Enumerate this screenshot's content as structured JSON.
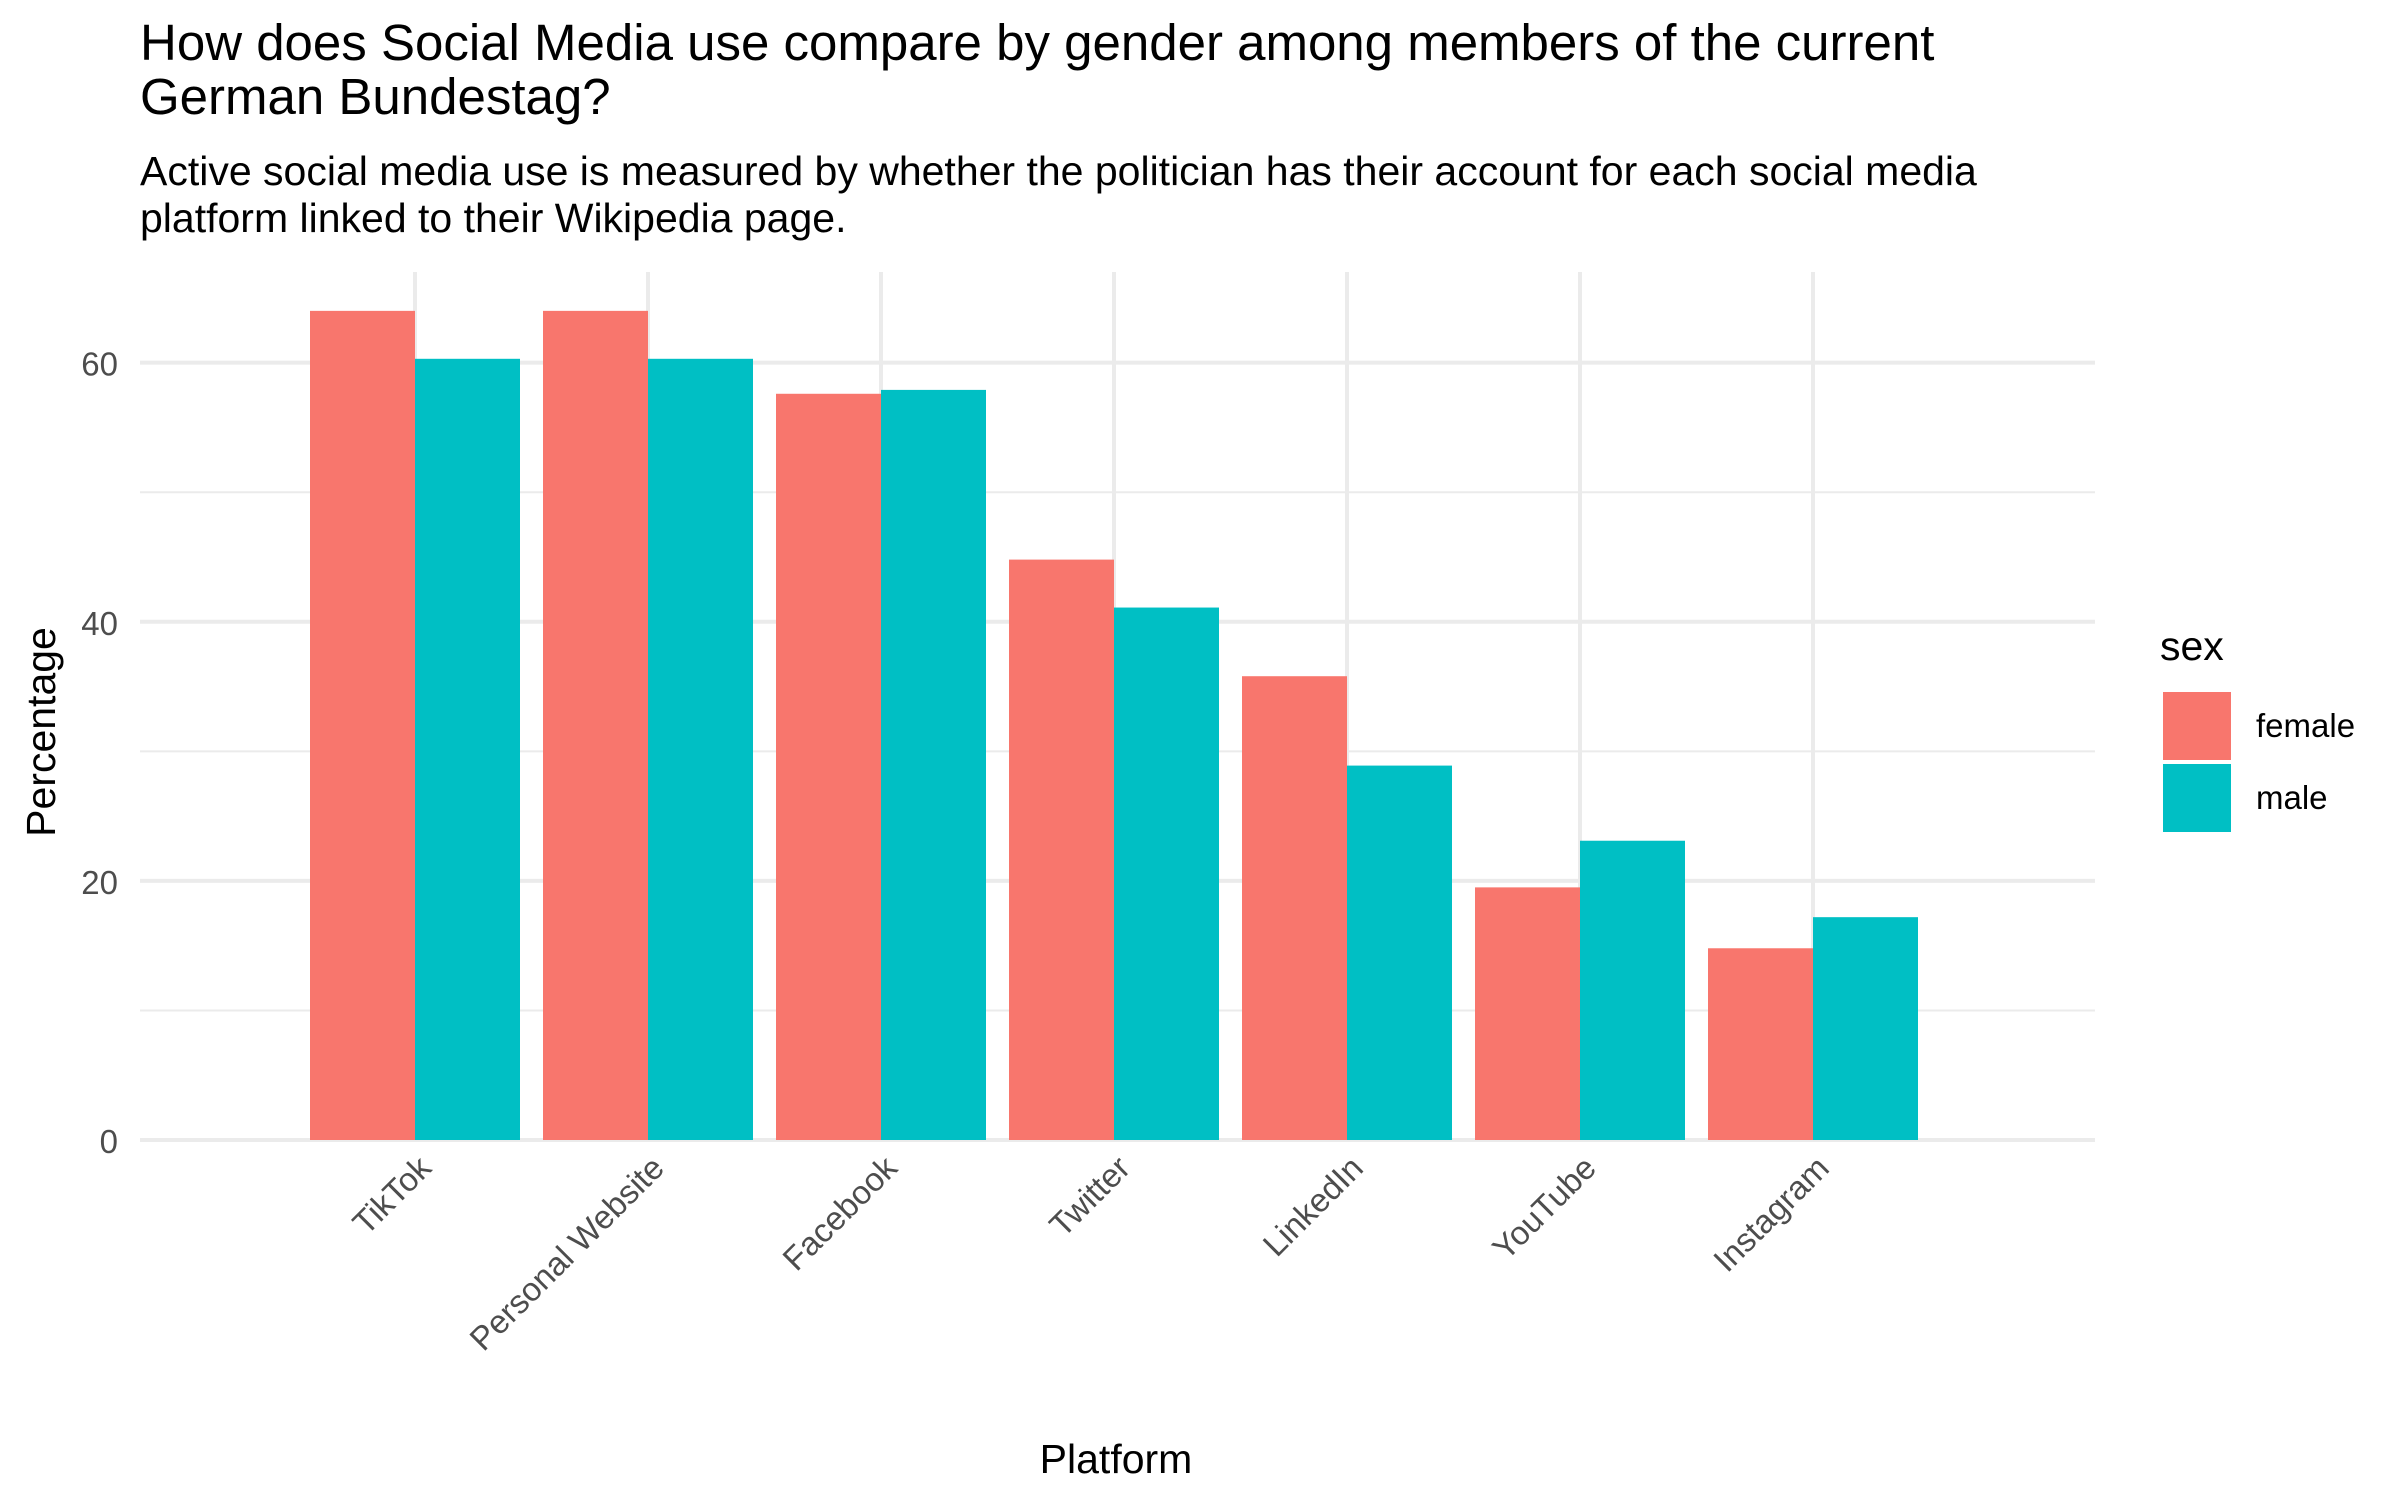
{
  "chart_data": {
    "type": "bar",
    "title": "How does Social Media use compare by gender among members of the current\n German Bundestag?",
    "subtitle": "Active social media use is measured by whether the politician has their account for each social media\n platform linked to their Wikipedia page.",
    "xlabel": "Platform",
    "ylabel": "Percentage",
    "categories": [
      "TikTok",
      "Personal Website",
      "Facebook",
      "Twitter",
      "LinkedIn",
      "YouTube",
      "Instagram"
    ],
    "series": [
      {
        "name": "female",
        "color": "#F8766D",
        "values": [
          64.0,
          64.0,
          57.6,
          44.8,
          35.8,
          19.5,
          14.8
        ]
      },
      {
        "name": "male",
        "color": "#00BFC4",
        "values": [
          60.3,
          60.3,
          57.9,
          41.1,
          28.9,
          23.1,
          17.2
        ]
      }
    ],
    "ylim": [
      0,
      67
    ],
    "yticks": [
      "0",
      "20",
      "40",
      "60"
    ],
    "legend": {
      "title": "sex",
      "position": "right"
    },
    "grid": true,
    "x_tick_rotation": 45
  }
}
